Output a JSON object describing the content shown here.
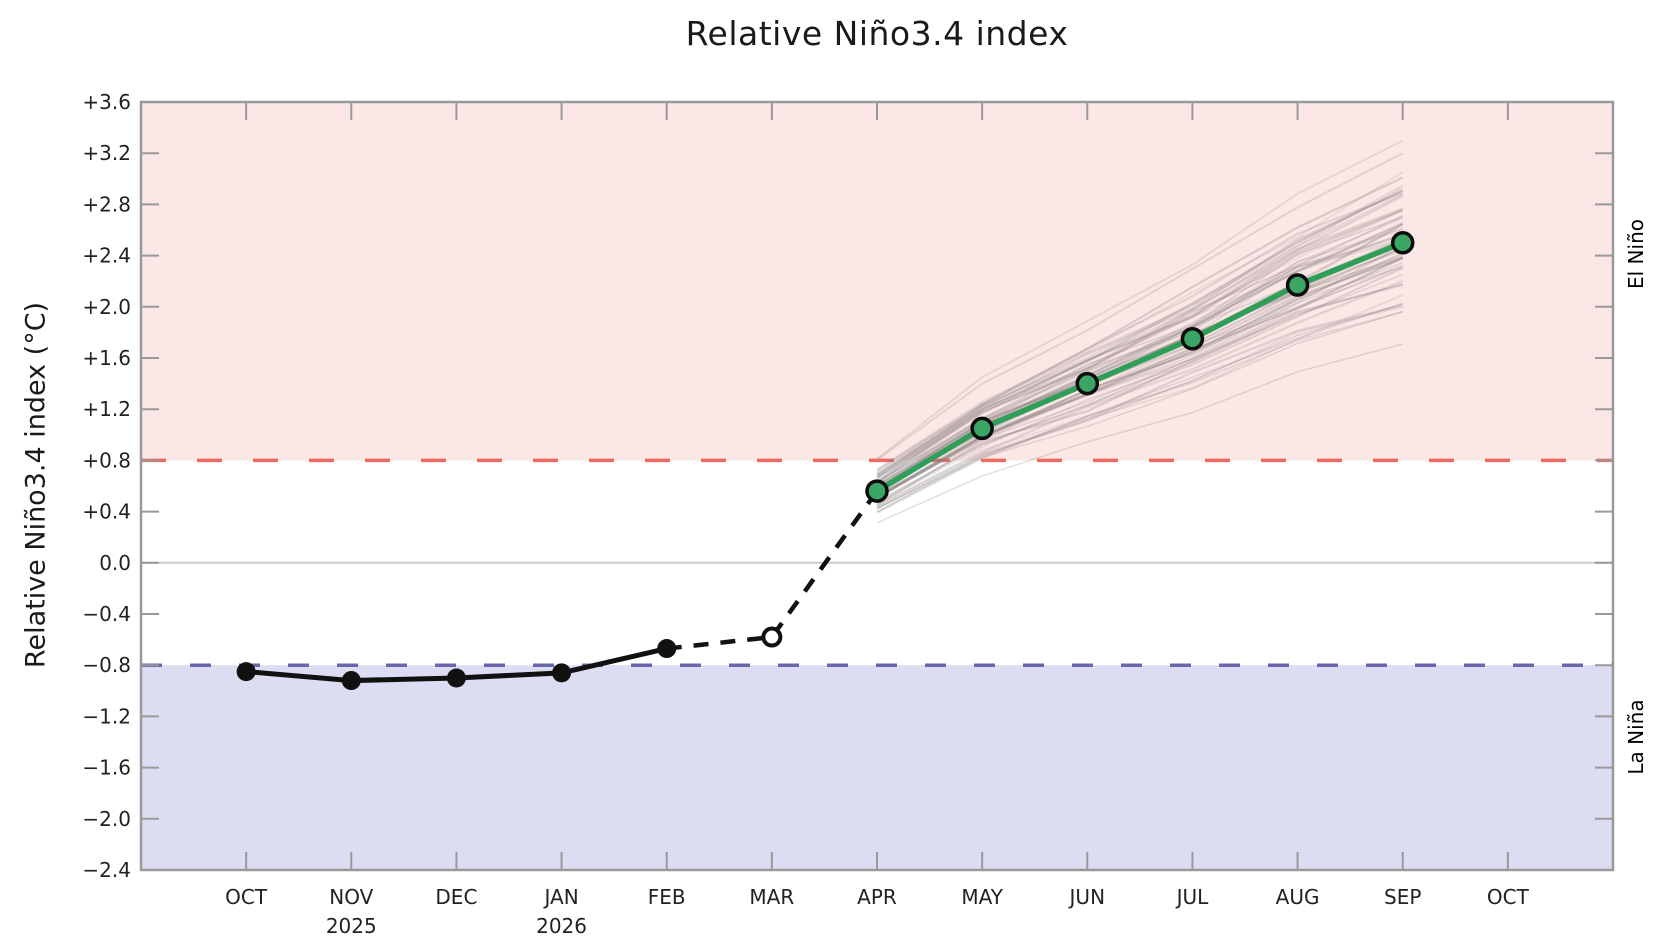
{
  "chart_data": {
    "type": "line",
    "title": "Relative Niño3.4 index",
    "ylabel": "Relative Niño3.4 index (°C)",
    "x_tick_labels": [
      "OCT",
      "NOV",
      "DEC",
      "JAN",
      "FEB",
      "MAR",
      "APR",
      "MAY",
      "JUN",
      "JUL",
      "AUG",
      "SEP",
      "OCT"
    ],
    "x_year_labels": [
      {
        "month_index": 1,
        "label": "2025"
      },
      {
        "month_index": 3,
        "label": "2026"
      }
    ],
    "y_tick_values": [
      3.6,
      3.2,
      2.8,
      2.4,
      2.0,
      1.6,
      1.2,
      0.8,
      0.4,
      0.0,
      -0.4,
      -0.8,
      -1.2,
      -1.6,
      -2.0,
      -2.4
    ],
    "y_tick_labels": [
      "+3.6",
      "+3.2",
      "+2.8",
      "+2.4",
      "+2.0",
      "+1.6",
      "+1.2",
      "+0.8",
      "+0.4",
      "0.0",
      "−0.4",
      "−0.8",
      "−1.2",
      "−1.6",
      "−2.0",
      "−2.4"
    ],
    "ylim": [
      -2.4,
      3.6
    ],
    "grid": "zero-line-only",
    "legend": "none",
    "thresholds": {
      "el_nino_value": 0.8,
      "la_nina_value": -0.8
    },
    "regions": {
      "el_nino_label": "El Niño",
      "la_nina_label": "La Niña"
    },
    "series": [
      {
        "name": "observed",
        "style": "solid-black-filled-markers",
        "month_indices": [
          0,
          1,
          2,
          3,
          4
        ],
        "months": [
          "OCT 2025",
          "NOV 2025",
          "DEC 2025",
          "JAN 2026",
          "FEB 2026"
        ],
        "values": [
          -0.85,
          -0.92,
          -0.9,
          -0.86,
          -0.67
        ]
      },
      {
        "name": "preliminary",
        "style": "dashed-black-open-marker",
        "month_indices": [
          5
        ],
        "months": [
          "MAR 2026"
        ],
        "values": [
          -0.58
        ]
      },
      {
        "name": "forecast-mean",
        "style": "solid-green-filled-markers",
        "month_indices": [
          6,
          7,
          8,
          9,
          10,
          11
        ],
        "months": [
          "APR 2026",
          "MAY 2026",
          "JUN 2026",
          "JUL 2026",
          "AUG 2026",
          "SEP 2026"
        ],
        "values": [
          0.56,
          1.05,
          1.4,
          1.75,
          2.17,
          2.5
        ]
      }
    ],
    "ensemble": {
      "name": "forecast-members-plume",
      "count": 58,
      "month_indices": [
        6,
        7,
        8,
        9,
        10,
        11
      ],
      "spread_start": 0.2,
      "spread_end": 0.62
    },
    "colors": {
      "el_nino_band": "#fbe7e6",
      "la_nina_band": "#dcdcf2",
      "el_nino_threshold": "#ef6a62",
      "la_nina_threshold": "#6767ab",
      "el_nino_label": "#cd5a54",
      "la_nina_label": "#6f6fae",
      "observed": "#111111",
      "forecast_line": "#2e9e58",
      "forecast_marker": "#3aa565",
      "ensemble": "#8c8282",
      "frame": "#999999",
      "zero_line": "#cccccc",
      "tick_text": "#222222"
    }
  }
}
